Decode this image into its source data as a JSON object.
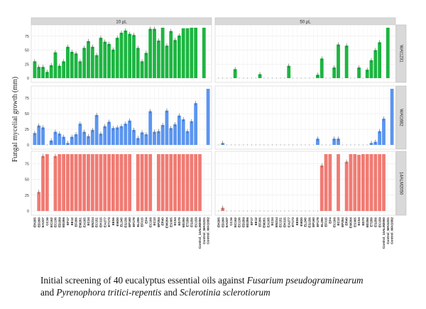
{
  "chart_data": {
    "type": "bar",
    "ylabel": "Fungal mycelial growth (mm)",
    "xlabel": "",
    "ylim": [
      0,
      90
    ],
    "yticks": [
      0,
      25,
      50,
      75
    ],
    "grid": true,
    "columns": [
      "10 µL",
      "50 µL"
    ],
    "rows": [
      "WAI1231",
      "WAI1682",
      "14ALM2050"
    ],
    "row_colors": [
      "#1db541",
      "#5b95ef",
      "#f07b73"
    ],
    "categories": [
      "EH205",
      "ED260",
      "EA237",
      "CC16",
      "EC162",
      "EC136",
      "ED289",
      "ED286",
      "EF17",
      "EE12",
      "EF266",
      "EM201",
      "EA165",
      "EC34",
      "EN214",
      "EC151",
      "EH315",
      "EA277",
      "ET173",
      "EE56",
      "EW20",
      "EL245",
      "EG156",
      "EP160",
      "EF178",
      "EL286",
      "EF315",
      "EP4",
      "EC166",
      "EC13",
      "EP294",
      "ER40",
      "EW204",
      "ES305",
      "EC54",
      "ED79",
      "ED250",
      "ET289",
      "ES256",
      "EC150",
      "Control_14ALM2050",
      "Control_WAI1231",
      "Control_WAI1682"
    ],
    "panels": [
      {
        "row": "WAI1231",
        "column": "10 µL",
        "values": [
          30,
          20,
          20,
          11,
          23,
          46,
          22,
          30,
          56,
          47,
          44,
          30,
          54,
          66,
          56,
          41,
          72,
          65,
          61,
          51,
          72,
          81,
          85,
          79,
          77,
          54,
          30,
          45,
          88,
          88,
          67,
          90,
          58,
          84,
          68,
          76,
          89,
          89,
          90,
          90,
          null,
          90,
          null
        ]
      },
      {
        "row": "WAI1231",
        "column": "50 µL",
        "values": [
          0,
          0,
          0,
          0,
          16,
          0,
          0,
          0,
          0,
          0,
          7,
          0,
          0,
          0,
          0,
          0,
          0,
          22,
          0,
          0,
          0,
          0,
          0,
          0,
          6,
          35,
          0,
          0,
          19,
          60,
          0,
          58,
          0,
          0,
          19,
          0,
          15,
          32,
          50,
          64,
          null,
          90,
          null
        ]
      },
      {
        "row": "WAI1682",
        "column": "10 µL",
        "values": [
          19,
          31,
          28,
          0,
          7,
          21,
          18,
          13,
          3,
          13,
          17,
          34,
          21,
          14,
          24,
          48,
          18,
          30,
          37,
          27,
          28,
          30,
          34,
          39,
          24,
          11,
          20,
          17,
          54,
          21,
          22,
          32,
          55,
          27,
          33,
          47,
          41,
          22,
          38,
          67,
          null,
          null,
          90
        ]
      },
      {
        "row": "WAI1682",
        "column": "50 µL",
        "values": [
          0,
          3,
          0,
          0,
          0,
          0,
          0,
          0,
          0,
          0,
          0,
          0,
          0,
          0,
          0,
          0,
          0,
          0,
          0,
          0,
          0,
          0,
          0,
          0,
          10,
          0,
          0,
          0,
          10,
          10,
          0,
          0,
          0,
          0,
          0,
          0,
          0,
          3,
          5,
          22,
          42,
          null,
          90
        ]
      },
      {
        "row": "14ALM2050",
        "column": "10 µL",
        "values": [
          null,
          30,
          87,
          90,
          null,
          87,
          90,
          90,
          90,
          90,
          90,
          90,
          90,
          90,
          90,
          90,
          90,
          90,
          90,
          90,
          90,
          90,
          90,
          90,
          null,
          90,
          90,
          90,
          90,
          null,
          90,
          90,
          90,
          90,
          90,
          90,
          90,
          90,
          90,
          90,
          90,
          null,
          null
        ]
      },
      {
        "row": "14ALM2050",
        "column": "50 µL",
        "values": [
          0,
          5,
          0,
          0,
          0,
          0,
          0,
          0,
          0,
          0,
          0,
          0,
          0,
          0,
          0,
          0,
          0,
          0,
          0,
          0,
          0,
          0,
          0,
          0,
          0,
          72,
          90,
          90,
          null,
          90,
          null,
          78,
          90,
          90,
          89,
          90,
          90,
          90,
          90,
          90,
          90,
          null,
          null
        ]
      }
    ]
  },
  "caption": {
    "prefix": "Initial screening of 40 eucalyptus essential oils against ",
    "species1": "Fusarium pseudograminearum",
    "mid1": "and ",
    "species2": "Pyrenophora tritici-repentis",
    "mid2": " and ",
    "species3": "Sclerotinia sclerotiorum"
  }
}
